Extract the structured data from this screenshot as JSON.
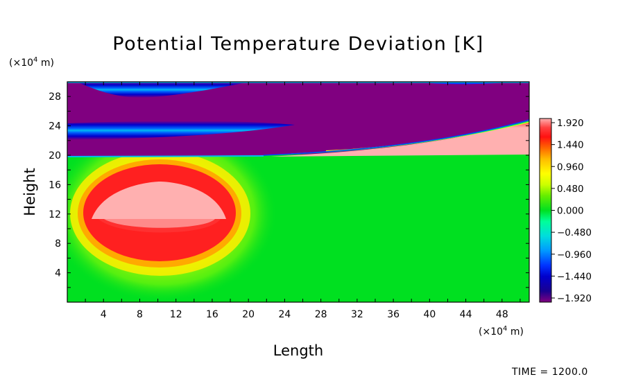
{
  "chart_data": {
    "type": "heatmap",
    "title": "Potential Temperature Deviation [K]",
    "xlabel": "Length",
    "ylabel": "Height",
    "x_unit": "(×10⁴ m)",
    "y_unit": "(×10⁴ m)",
    "x_unit_pre": "(×10",
    "x_unit_exp": "4",
    "x_unit_post": " m)",
    "y_unit_pre": "(×10",
    "y_unit_exp": "4",
    "y_unit_post": " m)",
    "xlim": [
      0,
      51
    ],
    "ylim": [
      0,
      30
    ],
    "x_ticks": [
      4,
      8,
      12,
      16,
      20,
      24,
      28,
      32,
      36,
      40,
      44,
      48
    ],
    "y_ticks": [
      4,
      8,
      12,
      16,
      20,
      24,
      28
    ],
    "colorbar": {
      "min": -1.92,
      "max": 1.92,
      "labels": [
        "1.920",
        "1.440",
        "0.960",
        "0.480",
        "0.000",
        "-0.480",
        "-0.960",
        "-1.440",
        "-1.920"
      ],
      "levels": [
        -1.92,
        -1.44,
        -0.96,
        -0.48,
        0.0,
        0.48,
        0.96,
        1.44,
        1.92
      ]
    },
    "features": [
      {
        "kind": "warm_bubble",
        "x_center": 10,
        "y_center": 11.5,
        "x_radius": 6.5,
        "y_top": 16,
        "y_bottom": 9.5,
        "peak": 1.92
      },
      {
        "kind": "upper_layer_negative",
        "y_from": 20,
        "y_to": 30,
        "value": -1.92
      },
      {
        "kind": "cool_band",
        "x_from": 0,
        "x_to": 25,
        "y_center": 23.5,
        "value": -1.0
      },
      {
        "kind": "cool_band",
        "x_from": 0,
        "x_to": 20,
        "y_center": 29,
        "value": -1.1
      },
      {
        "kind": "warm_wedge",
        "x_from": 22,
        "x_to": 51,
        "y_bottom": 20,
        "y_top_end": 24.5,
        "value": 1.92
      }
    ]
  },
  "footer": {
    "time_label": "TIME = 1200.0"
  }
}
